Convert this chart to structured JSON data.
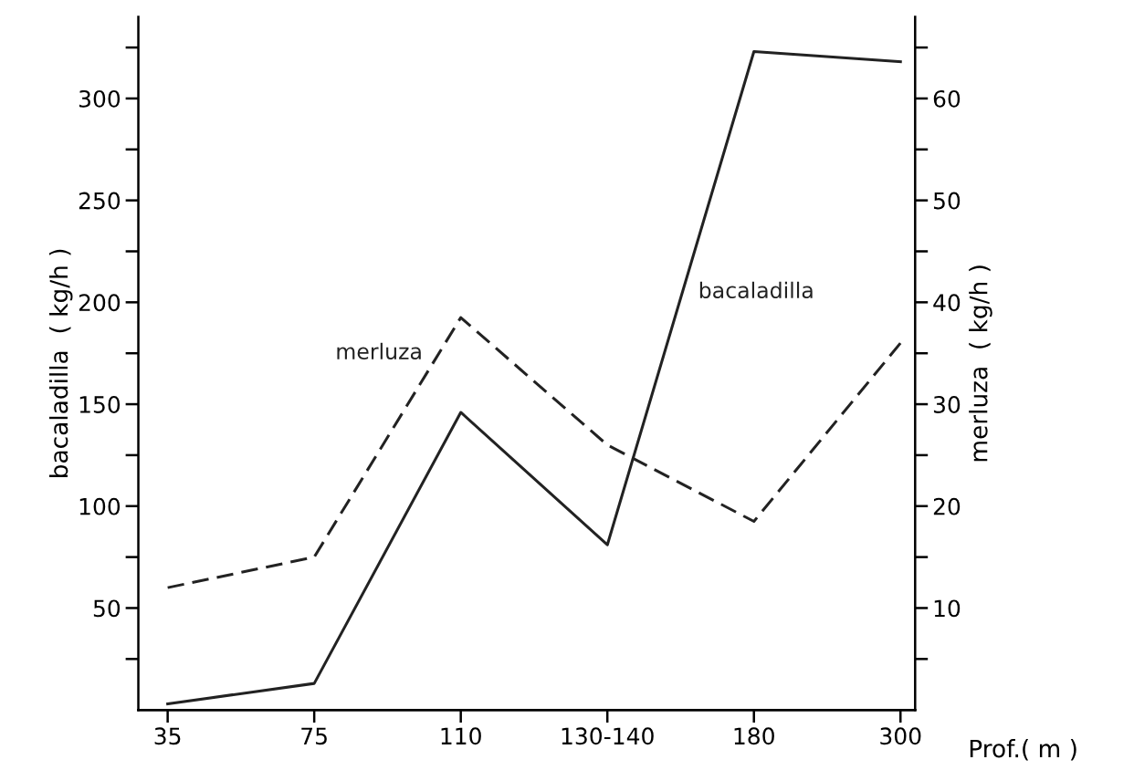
{
  "chart_data": {
    "type": "line",
    "xlabel": "Prof.( m )",
    "ylabel": "bacaladilla  ( kg/h )",
    "y2label": "merluza  ( kg/h )",
    "categories": [
      "35",
      "75",
      "110",
      "130-140",
      "180",
      "300"
    ],
    "series": [
      {
        "name": "bacaladilla",
        "color": "#222222",
        "line_style": "solid",
        "values": [
          3,
          13,
          146,
          81,
          323,
          318
        ]
      },
      {
        "name": "merluza",
        "color": "#222222",
        "line_style": "dashed",
        "axis": "y2",
        "values": [
          12,
          15,
          38.5,
          26,
          18.5,
          36
        ]
      }
    ],
    "ylim": [
      0,
      340
    ],
    "yticks": [
      {
        "value": 25,
        "label": null
      },
      50,
      {
        "value": 75,
        "label": null
      },
      100,
      {
        "value": 125,
        "label": null
      },
      150,
      {
        "value": 175,
        "label": null
      },
      200,
      {
        "value": 225,
        "label": null
      },
      250,
      {
        "value": 275,
        "label": null
      },
      300,
      {
        "value": 325,
        "label": null
      }
    ],
    "y2lim": [
      0,
      68
    ],
    "y2ticks": [
      {
        "value": 5,
        "label": null
      },
      10,
      {
        "value": 15,
        "label": null
      },
      20,
      {
        "value": 25,
        "label": null
      },
      30,
      {
        "value": 35,
        "label": null
      },
      40,
      {
        "value": 45,
        "label": null
      },
      50,
      {
        "value": 55,
        "label": null
      },
      60,
      {
        "value": 65,
        "label": null
      }
    ],
    "grid": false,
    "legend": false,
    "marker": "none"
  }
}
